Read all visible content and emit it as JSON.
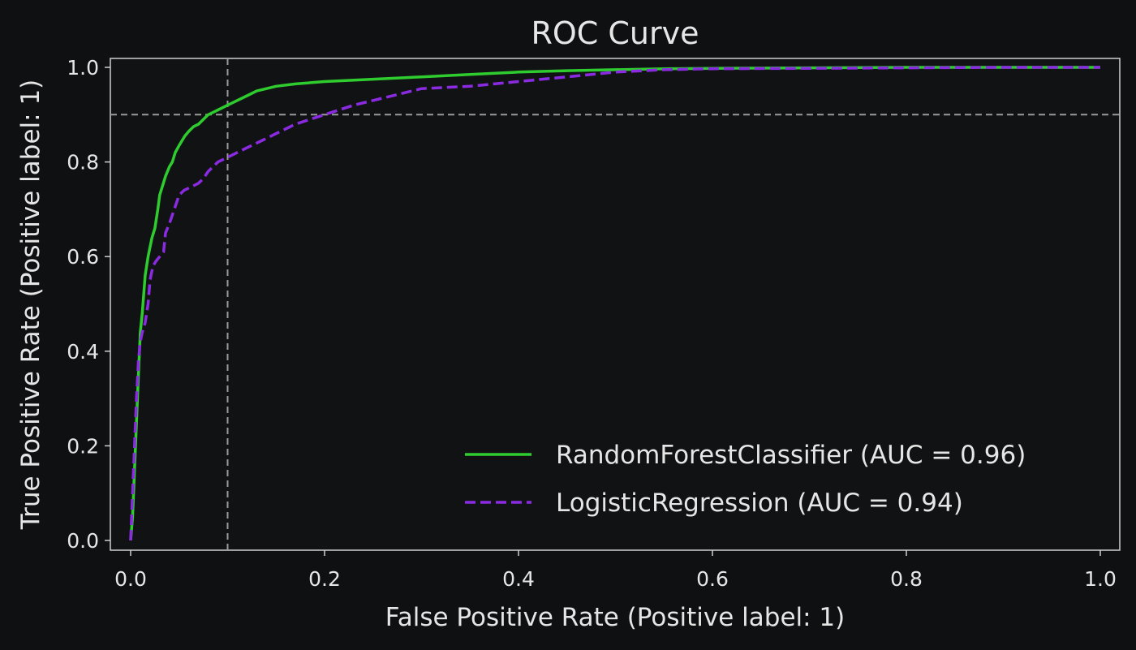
{
  "chart_data": {
    "type": "line",
    "title": "ROC Curve",
    "xlabel": "False Positive Rate (Positive label: 1)",
    "ylabel": "True Positive Rate (Positive label: 1)",
    "xlim": [
      0,
      1
    ],
    "ylim": [
      0,
      1
    ],
    "xticks": [
      0.0,
      0.2,
      0.4,
      0.6,
      0.8,
      1.0
    ],
    "yticks": [
      0.0,
      0.2,
      0.4,
      0.6,
      0.8,
      1.0
    ],
    "xtick_labels": [
      "0.0",
      "0.2",
      "0.4",
      "0.6",
      "0.8",
      "1.0"
    ],
    "ytick_labels": [
      "0.0",
      "0.2",
      "0.4",
      "0.6",
      "0.8",
      "1.0"
    ],
    "grid": false,
    "legend_position": "lower-right",
    "reference_lines": [
      {
        "orientation": "vertical",
        "x": 0.1,
        "style": "dashed",
        "color": "#9a9a9a"
      },
      {
        "orientation": "horizontal",
        "y": 0.9,
        "style": "dashed",
        "color": "#9a9a9a"
      }
    ],
    "series": [
      {
        "name": "RandomForestClassifier (AUC = 0.96)",
        "color": "#2ecc2e",
        "style": "solid",
        "x": [
          0.0,
          0.002,
          0.004,
          0.006,
          0.008,
          0.01,
          0.012,
          0.015,
          0.018,
          0.02,
          0.022,
          0.025,
          0.028,
          0.03,
          0.033,
          0.036,
          0.04,
          0.043,
          0.046,
          0.05,
          0.053,
          0.056,
          0.06,
          0.065,
          0.07,
          0.075,
          0.08,
          0.085,
          0.09,
          0.1,
          0.11,
          0.12,
          0.13,
          0.15,
          0.17,
          0.2,
          0.25,
          0.3,
          0.35,
          0.4,
          0.45,
          0.5,
          0.55,
          0.6,
          0.7,
          0.8,
          0.9,
          1.0
        ],
        "y": [
          0.0,
          0.05,
          0.15,
          0.25,
          0.35,
          0.44,
          0.48,
          0.56,
          0.6,
          0.62,
          0.64,
          0.66,
          0.7,
          0.73,
          0.75,
          0.77,
          0.79,
          0.8,
          0.82,
          0.835,
          0.845,
          0.855,
          0.865,
          0.875,
          0.88,
          0.89,
          0.9,
          0.905,
          0.91,
          0.92,
          0.93,
          0.94,
          0.95,
          0.96,
          0.965,
          0.97,
          0.975,
          0.98,
          0.985,
          0.99,
          0.993,
          0.995,
          0.997,
          0.998,
          0.999,
          1.0,
          1.0,
          1.0
        ]
      },
      {
        "name": "LogisticRegression (AUC = 0.94)",
        "color": "#8a2be2",
        "style": "dashed",
        "x": [
          0.0,
          0.002,
          0.004,
          0.006,
          0.008,
          0.01,
          0.012,
          0.015,
          0.018,
          0.02,
          0.023,
          0.026,
          0.03,
          0.034,
          0.036,
          0.04,
          0.045,
          0.05,
          0.055,
          0.06,
          0.065,
          0.07,
          0.075,
          0.08,
          0.085,
          0.09,
          0.1,
          0.11,
          0.12,
          0.13,
          0.15,
          0.17,
          0.2,
          0.23,
          0.25,
          0.28,
          0.3,
          0.35,
          0.4,
          0.45,
          0.5,
          0.55,
          0.6,
          0.7,
          0.8,
          0.9,
          1.0
        ],
        "y": [
          0.0,
          0.1,
          0.2,
          0.3,
          0.38,
          0.42,
          0.44,
          0.46,
          0.5,
          0.55,
          0.58,
          0.59,
          0.6,
          0.61,
          0.65,
          0.67,
          0.7,
          0.73,
          0.74,
          0.745,
          0.75,
          0.755,
          0.765,
          0.78,
          0.79,
          0.8,
          0.81,
          0.82,
          0.83,
          0.84,
          0.86,
          0.88,
          0.9,
          0.92,
          0.93,
          0.945,
          0.955,
          0.96,
          0.97,
          0.98,
          0.99,
          0.995,
          0.997,
          0.998,
          0.999,
          1.0,
          1.0
        ]
      }
    ]
  },
  "colors": {
    "background": "#0f1012",
    "axes_frame": "#cfcfcf",
    "text": "#e6e6e6"
  }
}
